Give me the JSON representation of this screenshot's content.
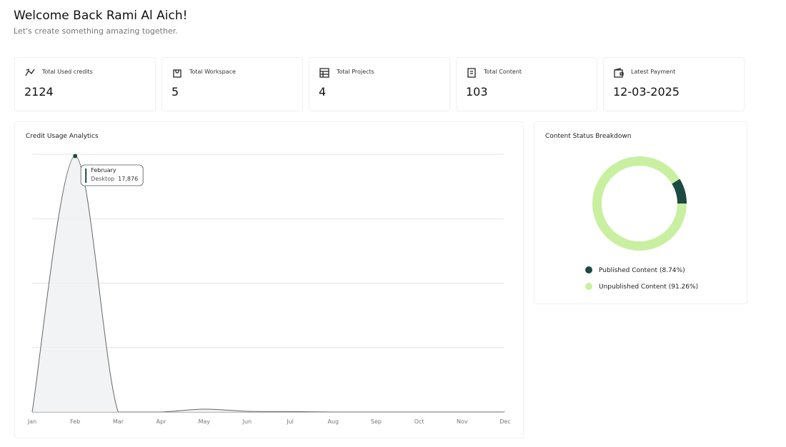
{
  "header": {
    "title": "Welcome Back Rami Al Aich!",
    "subtitle": "Let's create something amazing together."
  },
  "stats": [
    {
      "label": "Total Used credits",
      "value": 2124
    },
    {
      "label": "Total Workspace",
      "value": 5
    },
    {
      "label": "Total Projects",
      "value": 4
    },
    {
      "label": "Total Content",
      "value": 103
    },
    {
      "label": "Latest Payment",
      "value": "12-03-2025"
    }
  ],
  "credit_chart": {
    "type": "area",
    "title": "Credit Usage Analytics",
    "categories": [
      "Jan",
      "Feb",
      "Mar",
      "Apr",
      "May",
      "Jun",
      "Jul",
      "Aug",
      "Sep",
      "Oct",
      "Nov",
      "Dec"
    ],
    "values": [
      0,
      17876,
      0,
      0,
      200,
      50,
      30,
      0,
      0,
      0,
      0,
      0
    ],
    "ylim": [
      0,
      18000
    ],
    "yticks": [
      0,
      4500,
      9000,
      13500,
      18000
    ],
    "grid": true,
    "color": "#1d4a43",
    "tooltip": {
      "title": "February",
      "series": "Desktop",
      "value_label": "17,876"
    }
  },
  "status_chart": {
    "type": "donut",
    "title": "Content Status Breakdown",
    "segments": [
      {
        "name": "Published Content",
        "value": 8.74,
        "value_label": "(8.74%)",
        "color": "#1d4a43"
      },
      {
        "name": "Unpublished Content",
        "value": 91.26,
        "value_label": "(91.26%)",
        "color": "#c8f0a0"
      }
    ]
  }
}
